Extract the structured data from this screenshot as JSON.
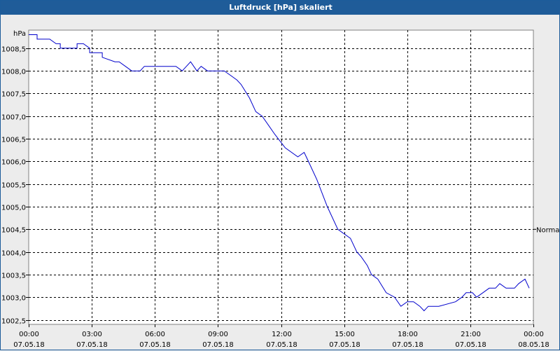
{
  "window": {
    "title": "Luftdruck [hPa] skaliert"
  },
  "chart_data": {
    "type": "line",
    "title": "Luftdruck [hPa] skaliert",
    "ylabel": "hPa",
    "ylim": [
      1002.4,
      1008.9
    ],
    "y_ticks": [
      "1002,5",
      "1003,0",
      "1003,5",
      "1004,0",
      "1004,5",
      "1005,0",
      "1005,5",
      "1006,0",
      "1006,5",
      "1007,0",
      "1007,5",
      "1008,0",
      "1008,5"
    ],
    "y_tick_values": [
      1002.5,
      1003.0,
      1003.5,
      1004.0,
      1004.5,
      1005.0,
      1005.5,
      1006.0,
      1006.5,
      1007.0,
      1007.5,
      1008.0,
      1008.5
    ],
    "xlim_hours": [
      0,
      24
    ],
    "x_ticks": [
      {
        "hour": 0,
        "time": "00:00",
        "date": "07.05.18"
      },
      {
        "hour": 3,
        "time": "03:00",
        "date": "07.05.18"
      },
      {
        "hour": 6,
        "time": "06:00",
        "date": "07.05.18"
      },
      {
        "hour": 9,
        "time": "09:00",
        "date": "07.05.18"
      },
      {
        "hour": 12,
        "time": "12:00",
        "date": "07.05.18"
      },
      {
        "hour": 15,
        "time": "15:00",
        "date": "07.05.18"
      },
      {
        "hour": 18,
        "time": "18:00",
        "date": "07.05.18"
      },
      {
        "hour": 21,
        "time": "21:00",
        "date": "07.05.18"
      },
      {
        "hour": 24,
        "time": "00:00",
        "date": "08.05.18"
      }
    ],
    "reference_line": {
      "label": "Normal",
      "value": 1004.5
    },
    "grid": true,
    "series": [
      {
        "color": "#0000cc",
        "x": [
          0,
          0.4,
          0.4,
          1,
          1.3,
          1.5,
          1.5,
          2.3,
          2.3,
          2.6,
          2.9,
          2.9,
          3.5,
          3.5,
          4.1,
          4.3,
          4.6,
          4.9,
          5.3,
          5.5,
          7,
          7.3,
          7.5,
          7.7,
          8,
          8.2,
          8.5,
          9.3,
          9.6,
          9.9,
          10.1,
          10.5,
          10.8,
          11.1,
          11.4,
          11.7,
          12.2,
          12.8,
          13.1,
          13.3,
          13.7,
          14.2,
          14.7,
          15.3,
          15.6,
          15.8,
          16.1,
          16.3,
          16.6,
          17,
          17.4,
          17.7,
          18,
          18.3,
          18.6,
          18.8,
          19,
          19.2,
          19.3,
          19.5,
          20.3,
          20.6,
          20.8,
          21.1,
          21.3,
          21.6,
          21.9,
          22.2,
          22.4,
          22.7,
          23.1,
          23.3,
          23.6,
          23.8
        ],
        "values": [
          1008.8,
          1008.8,
          1008.7,
          1008.7,
          1008.6,
          1008.6,
          1008.5,
          1008.5,
          1008.6,
          1008.6,
          1008.5,
          1008.4,
          1008.4,
          1008.3,
          1008.2,
          1008.2,
          1008.1,
          1008.0,
          1008.0,
          1008.1,
          1008.1,
          1008.0,
          1008.1,
          1008.2,
          1008.0,
          1008.1,
          1008.0,
          1008.0,
          1007.9,
          1007.8,
          1007.7,
          1007.4,
          1007.1,
          1007.0,
          1006.8,
          1006.6,
          1006.3,
          1006.1,
          1006.2,
          1006.0,
          1005.6,
          1005.0,
          1004.5,
          1004.3,
          1004.0,
          1003.9,
          1003.7,
          1003.5,
          1003.4,
          1003.1,
          1003.0,
          1002.8,
          1002.9,
          1002.9,
          1002.8,
          1002.7,
          1002.8,
          1002.8,
          1002.8,
          1002.8,
          1002.9,
          1003.0,
          1003.1,
          1003.1,
          1003.0,
          1003.1,
          1003.2,
          1003.2,
          1003.3,
          1003.2,
          1003.2,
          1003.3,
          1003.4,
          1003.2
        ]
      }
    ]
  }
}
